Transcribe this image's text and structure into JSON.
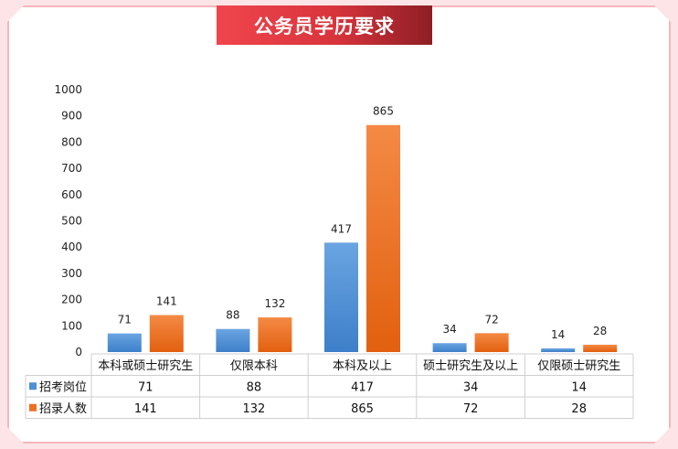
{
  "title": "公务员学历要求",
  "colors": {
    "series1": "#4f8fd6",
    "series2": "#ee6f22",
    "title_start": "#f0454d",
    "title_end": "#8e1e24"
  },
  "chart_data": {
    "type": "bar",
    "title": "公务员学历要求",
    "categories": [
      "本科或硕士研究生",
      "仅限本科",
      "本科及以上",
      "硕士研究生及以上",
      "仅限硕士研究生"
    ],
    "series": [
      {
        "name": "招考岗位",
        "values": [
          71,
          88,
          417,
          34,
          14
        ],
        "color": "#4f8fd6"
      },
      {
        "name": "招录人数",
        "values": [
          141,
          132,
          865,
          72,
          28
        ],
        "color": "#ee6f22"
      }
    ],
    "ylim": [
      0,
      1000
    ],
    "yticks": [
      0,
      100,
      200,
      300,
      400,
      500,
      600,
      700,
      800,
      900,
      1000
    ],
    "grid": false,
    "legend": "data-table",
    "data_labels": true
  }
}
